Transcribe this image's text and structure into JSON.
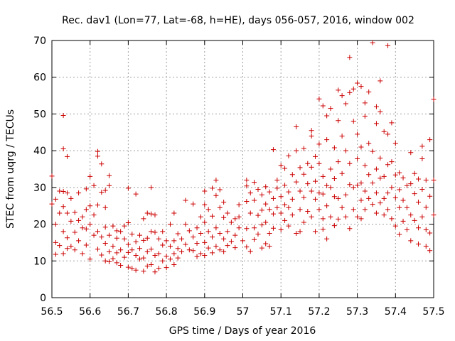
{
  "chart_data": {
    "type": "scatter",
    "title": "Rec. dav1 (Lon=77, Lat=-68, h=HE), days 056-057, 2016, window 002",
    "xlabel": "GPS time / Days of year 2016",
    "ylabel": "STEC from uqrg / TECUs",
    "xlim": [
      56.5,
      57.5
    ],
    "ylim": [
      0,
      70
    ],
    "xticks": [
      "56.5",
      "56.6",
      "56.7",
      "56.8",
      "56.9",
      "57",
      "57.1",
      "57.2",
      "57.3",
      "57.4",
      "57.5"
    ],
    "yticks": [
      "0",
      "10",
      "20",
      "30",
      "40",
      "50",
      "60",
      "70"
    ],
    "grid": true,
    "marker": "+",
    "color": "#cc0000",
    "points": [
      [
        56.5,
        33.1
      ],
      [
        56.5,
        25.5
      ],
      [
        56.51,
        26.8
      ],
      [
        56.51,
        20.0
      ],
      [
        56.51,
        15.0
      ],
      [
        56.51,
        11.8
      ],
      [
        56.52,
        29.0
      ],
      [
        56.52,
        23.0
      ],
      [
        56.52,
        14.2
      ],
      [
        56.53,
        49.6
      ],
      [
        56.53,
        40.5
      ],
      [
        56.53,
        28.9
      ],
      [
        56.53,
        24.8
      ],
      [
        56.53,
        18.0
      ],
      [
        56.53,
        12.0
      ],
      [
        56.54,
        38.4
      ],
      [
        56.54,
        28.5
      ],
      [
        56.54,
        23.0
      ],
      [
        56.54,
        16.3
      ],
      [
        56.54,
        13.4
      ],
      [
        56.55,
        27.0
      ],
      [
        56.55,
        20.8
      ],
      [
        56.55,
        14.0
      ],
      [
        56.56,
        23.2
      ],
      [
        56.56,
        17.8
      ],
      [
        56.56,
        13.0
      ],
      [
        56.57,
        28.5
      ],
      [
        56.57,
        21.0
      ],
      [
        56.57,
        15.5
      ],
      [
        56.58,
        19.0
      ],
      [
        56.58,
        12.0
      ],
      [
        56.58,
        22.0
      ],
      [
        56.59,
        29.6
      ],
      [
        56.59,
        24.0
      ],
      [
        56.59,
        18.7
      ],
      [
        56.59,
        14.3
      ],
      [
        56.6,
        33.0
      ],
      [
        56.6,
        25.0
      ],
      [
        56.6,
        20.0
      ],
      [
        56.6,
        10.5
      ],
      [
        56.61,
        30.5
      ],
      [
        56.61,
        22.5
      ],
      [
        56.61,
        17.0
      ],
      [
        56.62,
        39.8
      ],
      [
        56.62,
        38.5
      ],
      [
        56.62,
        25.2
      ],
      [
        56.62,
        18.0
      ],
      [
        56.62,
        13.2
      ],
      [
        56.63,
        36.4
      ],
      [
        56.63,
        28.7
      ],
      [
        56.63,
        16.5
      ],
      [
        56.63,
        11.6
      ],
      [
        56.64,
        29.2
      ],
      [
        56.64,
        24.5
      ],
      [
        56.64,
        19.2
      ],
      [
        56.64,
        14.8
      ],
      [
        56.64,
        10.0
      ],
      [
        56.65,
        33.2
      ],
      [
        56.65,
        30.5
      ],
      [
        56.65,
        17.0
      ],
      [
        56.65,
        12.5
      ],
      [
        56.65,
        9.8
      ],
      [
        56.66,
        19.5
      ],
      [
        56.66,
        14.0
      ],
      [
        56.66,
        10.6
      ],
      [
        56.67,
        18.2
      ],
      [
        56.67,
        16.2
      ],
      [
        56.67,
        12.2
      ],
      [
        56.67,
        9.5
      ],
      [
        56.68,
        18.0
      ],
      [
        56.68,
        13.0
      ],
      [
        56.68,
        8.8
      ],
      [
        56.69,
        19.5
      ],
      [
        56.69,
        16.0
      ],
      [
        56.69,
        11.0
      ],
      [
        56.7,
        29.8
      ],
      [
        56.7,
        20.4
      ],
      [
        56.7,
        14.5
      ],
      [
        56.7,
        12.3
      ],
      [
        56.7,
        8.3
      ],
      [
        56.71,
        17.3
      ],
      [
        56.71,
        13.0
      ],
      [
        56.71,
        8.0
      ],
      [
        56.72,
        28.2
      ],
      [
        56.72,
        15.2
      ],
      [
        56.72,
        11.5
      ],
      [
        56.72,
        7.5
      ],
      [
        56.73,
        17.0
      ],
      [
        56.73,
        13.4
      ],
      [
        56.73,
        10.5
      ],
      [
        56.74,
        21.5
      ],
      [
        56.74,
        15.6
      ],
      [
        56.74,
        10.8
      ],
      [
        56.74,
        7.2
      ],
      [
        56.75,
        23.0
      ],
      [
        56.75,
        16.2
      ],
      [
        56.75,
        12.5
      ],
      [
        56.75,
        8.6
      ],
      [
        56.76,
        30.0
      ],
      [
        56.76,
        22.8
      ],
      [
        56.76,
        18.0
      ],
      [
        56.76,
        13.2
      ],
      [
        56.76,
        9.0
      ],
      [
        56.77,
        22.5
      ],
      [
        56.77,
        17.8
      ],
      [
        56.77,
        11.5
      ],
      [
        56.77,
        7.0
      ],
      [
        56.78,
        16.0
      ],
      [
        56.78,
        12.0
      ],
      [
        56.78,
        8.0
      ],
      [
        56.79,
        18.0
      ],
      [
        56.79,
        14.3
      ],
      [
        56.79,
        10.0
      ],
      [
        56.8,
        15.5
      ],
      [
        56.8,
        11.3
      ],
      [
        56.8,
        8.2
      ],
      [
        56.81,
        20.0
      ],
      [
        56.81,
        14.0
      ],
      [
        56.81,
        10.5
      ],
      [
        56.82,
        23.0
      ],
      [
        56.82,
        15.5
      ],
      [
        56.82,
        12.0
      ],
      [
        56.82,
        9.0
      ],
      [
        56.83,
        17.4
      ],
      [
        56.83,
        13.4
      ],
      [
        56.83,
        10.8
      ],
      [
        56.84,
        16.0
      ],
      [
        56.84,
        12.5
      ],
      [
        56.85,
        26.5
      ],
      [
        56.85,
        20.0
      ],
      [
        56.85,
        14.5
      ],
      [
        56.86,
        18.2
      ],
      [
        56.86,
        13.0
      ],
      [
        56.87,
        25.5
      ],
      [
        56.87,
        16.5
      ],
      [
        56.87,
        12.8
      ],
      [
        56.88,
        19.0
      ],
      [
        56.88,
        14.8
      ],
      [
        56.88,
        11.2
      ],
      [
        56.89,
        22.0
      ],
      [
        56.89,
        17.5
      ],
      [
        56.89,
        12.0
      ],
      [
        56.9,
        29.0
      ],
      [
        56.9,
        25.3
      ],
      [
        56.9,
        20.5
      ],
      [
        56.9,
        15.0
      ],
      [
        56.9,
        11.5
      ],
      [
        56.91,
        24.0
      ],
      [
        56.91,
        18.0
      ],
      [
        56.91,
        13.5
      ],
      [
        56.92,
        29.8
      ],
      [
        56.92,
        22.2
      ],
      [
        56.92,
        16.5
      ],
      [
        56.92,
        12.2
      ],
      [
        56.93,
        32.0
      ],
      [
        56.93,
        27.8
      ],
      [
        56.93,
        19.0
      ],
      [
        56.93,
        14.0
      ],
      [
        56.94,
        29.4
      ],
      [
        56.94,
        24.5
      ],
      [
        56.94,
        17.5
      ],
      [
        56.94,
        13.0
      ],
      [
        56.95,
        26.0
      ],
      [
        56.95,
        21.8
      ],
      [
        56.95,
        16.0
      ],
      [
        56.95,
        12.5
      ],
      [
        56.96,
        23.0
      ],
      [
        56.96,
        18.0
      ],
      [
        56.96,
        14.2
      ],
      [
        56.97,
        20.5
      ],
      [
        56.97,
        15.3
      ],
      [
        56.98,
        21.5
      ],
      [
        56.98,
        17.0
      ],
      [
        56.98,
        13.6
      ],
      [
        56.99,
        25.3
      ],
      [
        56.99,
        22.0
      ],
      [
        56.99,
        19.0
      ],
      [
        57.0,
        15.5
      ],
      [
        57.01,
        32.0
      ],
      [
        57.01,
        30.4
      ],
      [
        57.01,
        26.2
      ],
      [
        57.01,
        18.8
      ],
      [
        57.01,
        13.8
      ],
      [
        57.02,
        28.5
      ],
      [
        57.02,
        23.0
      ],
      [
        57.02,
        12.6
      ],
      [
        57.03,
        31.4
      ],
      [
        57.03,
        26.5
      ],
      [
        57.03,
        19.0
      ],
      [
        57.03,
        15.8
      ],
      [
        57.04,
        29.5
      ],
      [
        57.04,
        22.4
      ],
      [
        57.04,
        17.3
      ],
      [
        57.05,
        28.0
      ],
      [
        57.05,
        23.8
      ],
      [
        57.05,
        19.8
      ],
      [
        57.05,
        13.5
      ],
      [
        57.06,
        30.2
      ],
      [
        57.06,
        25.5
      ],
      [
        57.06,
        20.5
      ],
      [
        57.06,
        14.7
      ],
      [
        57.07,
        28.8
      ],
      [
        57.07,
        24.0
      ],
      [
        57.07,
        17.5
      ],
      [
        57.07,
        14.0
      ],
      [
        57.08,
        40.3
      ],
      [
        57.08,
        27.0
      ],
      [
        57.08,
        22.8
      ],
      [
        57.08,
        18.9
      ],
      [
        57.09,
        32.0
      ],
      [
        57.09,
        29.8
      ],
      [
        57.09,
        24.5
      ],
      [
        57.1,
        36.0
      ],
      [
        57.1,
        27.5
      ],
      [
        57.1,
        23.0
      ],
      [
        57.1,
        18.5
      ],
      [
        57.11,
        35.2
      ],
      [
        57.11,
        30.6
      ],
      [
        57.11,
        25.3
      ],
      [
        57.11,
        21.0
      ],
      [
        57.12,
        38.6
      ],
      [
        57.12,
        28.8
      ],
      [
        57.12,
        24.5
      ],
      [
        57.12,
        19.5
      ],
      [
        57.13,
        33.5
      ],
      [
        57.13,
        26.8
      ],
      [
        57.13,
        22.5
      ],
      [
        57.14,
        46.5
      ],
      [
        57.14,
        40.0
      ],
      [
        57.14,
        31.5
      ],
      [
        57.14,
        17.5
      ],
      [
        57.15,
        35.4
      ],
      [
        57.15,
        29.0
      ],
      [
        57.15,
        24.0
      ],
      [
        57.15,
        18.0
      ],
      [
        57.16,
        40.6
      ],
      [
        57.16,
        33.6
      ],
      [
        57.16,
        27.3
      ],
      [
        57.16,
        20.5
      ],
      [
        57.17,
        36.5
      ],
      [
        57.17,
        31.0
      ],
      [
        57.17,
        23.5
      ],
      [
        57.18,
        45.5
      ],
      [
        57.18,
        44.0
      ],
      [
        57.18,
        35.5
      ],
      [
        57.18,
        29.0
      ],
      [
        57.18,
        22.0
      ],
      [
        57.19,
        38.4
      ],
      [
        57.19,
        31.7
      ],
      [
        57.19,
        26.8
      ],
      [
        57.19,
        18.0
      ],
      [
        57.2,
        54.1
      ],
      [
        57.2,
        41.8
      ],
      [
        57.2,
        36.5
      ],
      [
        57.2,
        28.5
      ],
      [
        57.2,
        24.0
      ],
      [
        57.21,
        52.2
      ],
      [
        57.21,
        33.0
      ],
      [
        57.21,
        28.2
      ],
      [
        57.21,
        21.5
      ],
      [
        57.21,
        18.6
      ],
      [
        57.22,
        49.5
      ],
      [
        57.22,
        43.0
      ],
      [
        57.22,
        30.5
      ],
      [
        57.22,
        25.0
      ],
      [
        57.22,
        16.0
      ],
      [
        57.23,
        51.5
      ],
      [
        57.23,
        35.0
      ],
      [
        57.23,
        30.0
      ],
      [
        57.23,
        22.0
      ],
      [
        57.24,
        40.8
      ],
      [
        57.24,
        32.4
      ],
      [
        57.24,
        27.5
      ],
      [
        57.24,
        19.6
      ],
      [
        57.25,
        56.5
      ],
      [
        57.25,
        48.2
      ],
      [
        57.25,
        37.0
      ],
      [
        57.25,
        27.0
      ],
      [
        57.25,
        21.4
      ],
      [
        57.26,
        55.0
      ],
      [
        57.26,
        44.0
      ],
      [
        57.26,
        33.8
      ],
      [
        57.26,
        24.5
      ],
      [
        57.27,
        52.8
      ],
      [
        57.27,
        40.0
      ],
      [
        57.27,
        28.0
      ],
      [
        57.27,
        22.0
      ],
      [
        57.28,
        65.4
      ],
      [
        57.28,
        55.8
      ],
      [
        57.28,
        36.5
      ],
      [
        57.28,
        30.8
      ],
      [
        57.28,
        18.8
      ],
      [
        57.29,
        56.8
      ],
      [
        57.29,
        48.0
      ],
      [
        57.29,
        30.0
      ],
      [
        57.29,
        24.0
      ],
      [
        57.3,
        58.4
      ],
      [
        57.3,
        44.5
      ],
      [
        57.3,
        37.8
      ],
      [
        57.3,
        30.6
      ],
      [
        57.3,
        22.0
      ],
      [
        57.31,
        57.5
      ],
      [
        57.31,
        41.0
      ],
      [
        57.31,
        31.2
      ],
      [
        57.31,
        26.5
      ],
      [
        57.31,
        21.5
      ],
      [
        57.32,
        53.0
      ],
      [
        57.32,
        49.4
      ],
      [
        57.32,
        36.0
      ],
      [
        57.32,
        29.0
      ],
      [
        57.32,
        24.0
      ],
      [
        57.33,
        56.0
      ],
      [
        57.33,
        42.0
      ],
      [
        57.33,
        33.5
      ],
      [
        57.33,
        27.0
      ],
      [
        57.34,
        69.4
      ],
      [
        57.34,
        39.8
      ],
      [
        57.34,
        31.2
      ],
      [
        57.34,
        25.4
      ],
      [
        57.35,
        52.0
      ],
      [
        57.35,
        47.4
      ],
      [
        57.35,
        35.0
      ],
      [
        57.35,
        28.5
      ],
      [
        57.35,
        23.0
      ],
      [
        57.36,
        59.0
      ],
      [
        57.36,
        50.6
      ],
      [
        57.36,
        38.0
      ],
      [
        57.36,
        32.5
      ],
      [
        57.36,
        25.8
      ],
      [
        57.37,
        45.2
      ],
      [
        57.37,
        33.0
      ],
      [
        57.37,
        27.0
      ],
      [
        57.37,
        22.5
      ],
      [
        57.38,
        68.6
      ],
      [
        57.38,
        44.5
      ],
      [
        57.38,
        36.2
      ],
      [
        57.38,
        28.5
      ],
      [
        57.38,
        24.0
      ],
      [
        57.39,
        47.6
      ],
      [
        57.39,
        37.0
      ],
      [
        57.39,
        30.0
      ],
      [
        57.39,
        21.5
      ],
      [
        57.4,
        42.0
      ],
      [
        57.4,
        33.4
      ],
      [
        57.4,
        27.2
      ],
      [
        57.4,
        19.5
      ],
      [
        57.41,
        34.0
      ],
      [
        57.41,
        29.4
      ],
      [
        57.41,
        24.5
      ],
      [
        57.41,
        17.2
      ],
      [
        57.42,
        32.6
      ],
      [
        57.42,
        26.5
      ],
      [
        57.42,
        20.8
      ],
      [
        57.43,
        30.5
      ],
      [
        57.43,
        24.5
      ],
      [
        57.43,
        18.5
      ],
      [
        57.44,
        39.5
      ],
      [
        57.44,
        31.0
      ],
      [
        57.44,
        22.5
      ],
      [
        57.44,
        15.5
      ],
      [
        57.45,
        33.8
      ],
      [
        57.45,
        28.3
      ],
      [
        57.45,
        21.0
      ],
      [
        57.46,
        32.3
      ],
      [
        57.46,
        26.0
      ],
      [
        57.46,
        19.0
      ],
      [
        57.46,
        14.6
      ],
      [
        57.47,
        41.2
      ],
      [
        57.47,
        37.8
      ],
      [
        57.47,
        29.5
      ],
      [
        57.47,
        22.0
      ],
      [
        57.48,
        32.0
      ],
      [
        57.48,
        24.6
      ],
      [
        57.48,
        18.5
      ],
      [
        57.48,
        14.0
      ],
      [
        57.49,
        43.0
      ],
      [
        57.49,
        27.6
      ],
      [
        57.49,
        17.6
      ],
      [
        57.49,
        12.8
      ],
      [
        57.5,
        54.0
      ],
      [
        57.5,
        32.0
      ],
      [
        57.5,
        22.5
      ]
    ]
  }
}
